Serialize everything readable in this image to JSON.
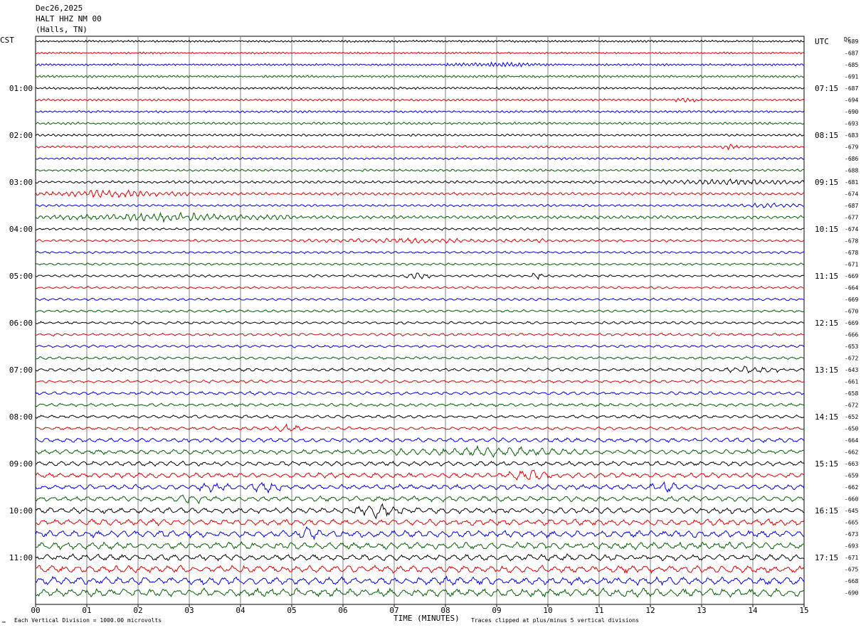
{
  "header": {
    "date": "Dec26,2025",
    "station": "HALT HHZ NM 00",
    "location": "(Halls, TN)",
    "left_tz": "CST",
    "right_tz": "UTC",
    "dc_label": "DC"
  },
  "footer": {
    "vertical_division": "Each Vertical Division = 1000.00 microvolts",
    "clip_note": "Traces clipped at plus/minus 5 vertical divisions",
    "corner_mark": "℠"
  },
  "colors": {
    "trace_cycle": [
      "#000000",
      "#e00000",
      "#0000e0",
      "#006000"
    ],
    "grid": "#808080",
    "text": "#000000"
  },
  "chart_data": {
    "type": "line",
    "title": "",
    "xlabel": "TIME (MINUTES)",
    "xlim": [
      0,
      15
    ],
    "x_ticks": [
      "00",
      "01",
      "02",
      "03",
      "04",
      "05",
      "06",
      "07",
      "08",
      "09",
      "10",
      "11",
      "12",
      "13",
      "14",
      "15"
    ],
    "trace_count": 48,
    "left_hour_labels": [
      "01:00",
      "02:00",
      "03:00",
      "04:00",
      "05:00",
      "06:00",
      "07:00",
      "08:00",
      "09:00",
      "10:00",
      "11:00"
    ],
    "right_hour_labels": [
      "UTC",
      "07:15",
      "08:15",
      "09:15",
      "10:15",
      "11:15",
      "12:15",
      "13:15",
      "14:15",
      "15:15",
      "16:15",
      "17:15"
    ],
    "dc_offsets": [
      "-689",
      "-687",
      "-685",
      "-691",
      "-687",
      "-694",
      "-690",
      "-693",
      "-683",
      "-679",
      "-686",
      "-688",
      "-681",
      "-674",
      "-687",
      "-677",
      "-674",
      "-678",
      "-678",
      "-671",
      "-669",
      "-664",
      "-669",
      "-670",
      "-669",
      "-666",
      "-653",
      "-672",
      "-643",
      "-661",
      "-658",
      "-672",
      "-652",
      "-650",
      "-664",
      "-662",
      "-663",
      "-659",
      "-662",
      "-660",
      "-645",
      "-665",
      "-673",
      "-693",
      "-671",
      "-675",
      "-668",
      "-690"
    ],
    "trace_amplitude": [
      1.2,
      1.1,
      1.2,
      1.3,
      1.3,
      1.3,
      1.3,
      1.3,
      1.3,
      1.3,
      1.3,
      1.3,
      1.5,
      1.6,
      1.3,
      1.8,
      1.3,
      1.4,
      1.3,
      1.3,
      1.3,
      1.3,
      1.4,
      1.4,
      1.5,
      1.5,
      1.5,
      1.5,
      1.8,
      1.6,
      1.8,
      1.8,
      1.8,
      1.8,
      2.4,
      2.6,
      2.6,
      2.8,
      2.8,
      2.9,
      3.2,
      3.5,
      3.8,
      4.0,
      3.6,
      4.0,
      4.4,
      4.6
    ],
    "events": [
      {
        "trace": 2,
        "start_min": 8.0,
        "end_min": 10.0,
        "amp": 2.0
      },
      {
        "trace": 5,
        "start_min": 12.5,
        "end_min": 13.0,
        "amp": 2.5
      },
      {
        "trace": 9,
        "start_min": 13.2,
        "end_min": 13.8,
        "amp": 2.5
      },
      {
        "trace": 12,
        "start_min": 12.0,
        "end_min": 15.0,
        "amp": 2.5
      },
      {
        "trace": 13,
        "start_min": 0.0,
        "end_min": 3.0,
        "amp": 3.5
      },
      {
        "trace": 14,
        "start_min": 13.5,
        "end_min": 15.0,
        "amp": 2.0
      },
      {
        "trace": 15,
        "start_min": 0.0,
        "end_min": 5.0,
        "amp": 3.5
      },
      {
        "trace": 17,
        "start_min": 5.0,
        "end_min": 10.0,
        "amp": 2.0
      },
      {
        "trace": 20,
        "start_min": 7.2,
        "end_min": 7.7,
        "amp": 5.0
      },
      {
        "trace": 20,
        "start_min": 9.7,
        "end_min": 9.9,
        "amp": 5.0
      },
      {
        "trace": 28,
        "start_min": 13.5,
        "end_min": 14.5,
        "amp": 3.0
      },
      {
        "trace": 33,
        "start_min": 4.6,
        "end_min": 5.2,
        "amp": 4.0
      },
      {
        "trace": 35,
        "start_min": 6.8,
        "end_min": 11.0,
        "amp": 3.5
      },
      {
        "trace": 37,
        "start_min": 9.2,
        "end_min": 10.0,
        "amp": 7.0
      },
      {
        "trace": 38,
        "start_min": 3.2,
        "end_min": 3.8,
        "amp": 5.0
      },
      {
        "trace": 38,
        "start_min": 4.2,
        "end_min": 4.8,
        "amp": 5.0
      },
      {
        "trace": 38,
        "start_min": 12.0,
        "end_min": 12.6,
        "amp": 4.0
      },
      {
        "trace": 39,
        "start_min": 2.7,
        "end_min": 3.2,
        "amp": 5.0
      },
      {
        "trace": 40,
        "start_min": 6.2,
        "end_min": 7.2,
        "amp": 7.0
      },
      {
        "trace": 42,
        "start_min": 5.0,
        "end_min": 5.6,
        "amp": 5.0
      }
    ]
  }
}
